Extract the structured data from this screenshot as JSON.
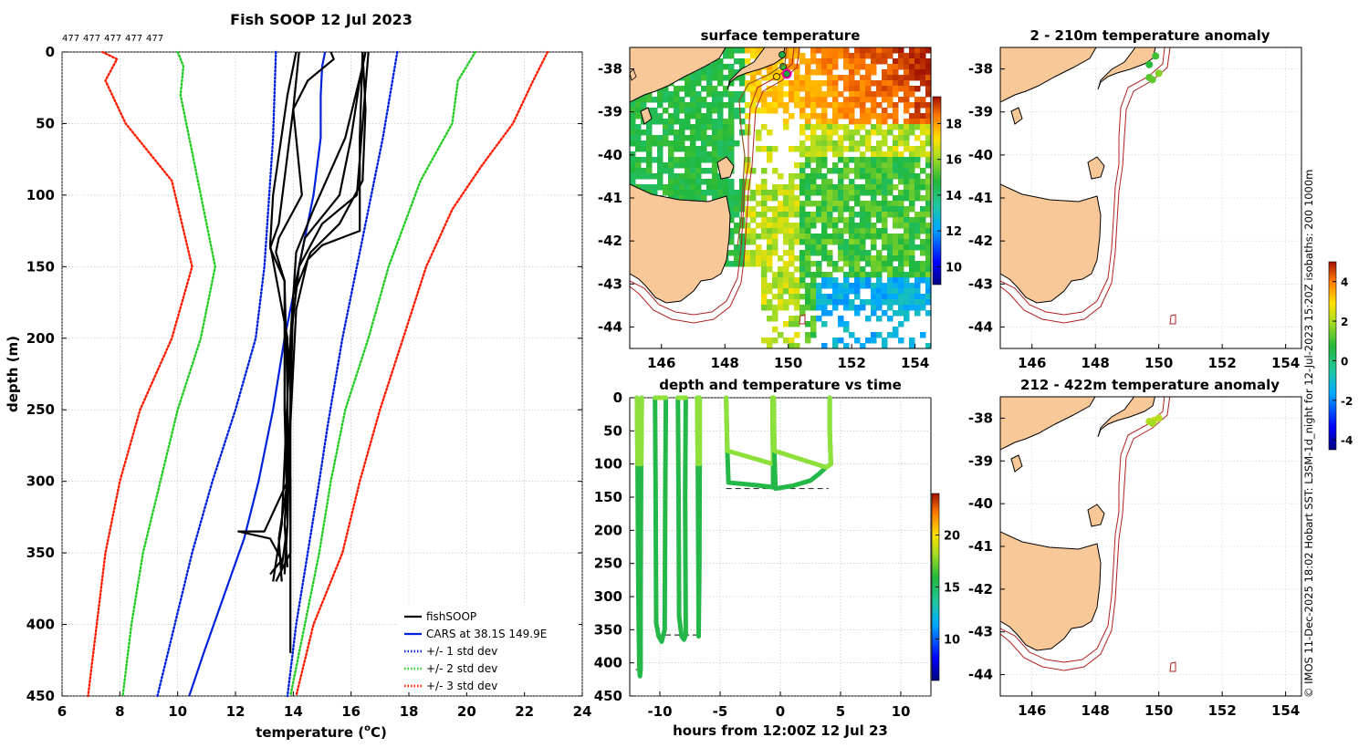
{
  "chart_data": [
    {
      "type": "line",
      "title": "Fish SOOP 12 Jul 2023",
      "count_labels": [
        "477",
        "477",
        "477",
        "477",
        "477"
      ],
      "xlabel": "temperature (",
      "xlabel_sup": "o",
      "xlabel_tail": "C)",
      "ylabel": "depth (m)",
      "xlim": [
        6,
        24
      ],
      "ylim": [
        0,
        450
      ],
      "y_inverted": true,
      "xticks": [
        "6",
        "8",
        "10",
        "12",
        "14",
        "16",
        "18",
        "20",
        "22",
        "24"
      ],
      "yticks": [
        "0",
        "50",
        "100",
        "150",
        "200",
        "250",
        "300",
        "350",
        "400",
        "450"
      ],
      "grid": true,
      "legend": {
        "placement": "bottom-right",
        "entries": [
          {
            "label": "fishSOOP",
            "color": "#000000",
            "style": "solid"
          },
          {
            "label": "CARS at 38.1S 149.9E",
            "color": "#0022dd",
            "style": "solid"
          },
          {
            "label": "+/- 1 std dev",
            "color": "#0022dd",
            "style": "dotted"
          },
          {
            "label": "+/- 2 std dev",
            "color": "#22cc22",
            "style": "dotted"
          },
          {
            "label": "+/- 3 std dev",
            "color": "#ff1a00",
            "style": "dotted"
          }
        ]
      },
      "cars_mean": {
        "name": "CARS at 38.1S 149.9E",
        "color": "#0022dd",
        "points": [
          [
            15.1,
            0
          ],
          [
            15.0,
            10
          ],
          [
            14.95,
            30
          ],
          [
            14.95,
            60
          ],
          [
            14.7,
            100
          ],
          [
            14.4,
            130
          ],
          [
            14.1,
            160
          ],
          [
            13.7,
            200
          ],
          [
            13.3,
            250
          ],
          [
            12.8,
            300
          ],
          [
            12.3,
            340
          ],
          [
            11.6,
            380
          ],
          [
            10.9,
            420
          ],
          [
            10.4,
            450
          ]
        ]
      },
      "std_bands": [
        {
          "name": "+/- 1 std dev",
          "color": "#0022dd",
          "left": [
            [
              13.4,
              0
            ],
            [
              13.3,
              60
            ],
            [
              13.0,
              150
            ],
            [
              12.7,
              200
            ],
            [
              12.0,
              250
            ],
            [
              11.2,
              300
            ],
            [
              10.5,
              350
            ],
            [
              9.9,
              400
            ],
            [
              9.3,
              450
            ]
          ],
          "right": [
            [
              17.6,
              0
            ],
            [
              17.1,
              60
            ],
            [
              16.5,
              120
            ],
            [
              15.7,
              200
            ],
            [
              15.2,
              260
            ],
            [
              14.9,
              300
            ],
            [
              14.5,
              350
            ],
            [
              14.1,
              400
            ],
            [
              13.8,
              450
            ]
          ]
        },
        {
          "name": "+/- 2 std dev",
          "color": "#22cc22",
          "left": [
            [
              10.0,
              0
            ],
            [
              10.2,
              10
            ],
            [
              10.1,
              30
            ],
            [
              10.6,
              80
            ],
            [
              11.3,
              150
            ],
            [
              10.8,
              200
            ],
            [
              10.0,
              250
            ],
            [
              9.4,
              300
            ],
            [
              8.8,
              350
            ],
            [
              8.4,
              400
            ],
            [
              8.1,
              450
            ]
          ],
          "right": [
            [
              20.3,
              0
            ],
            [
              19.7,
              20
            ],
            [
              19.5,
              50
            ],
            [
              18.4,
              90
            ],
            [
              17.3,
              150
            ],
            [
              16.6,
              200
            ],
            [
              15.8,
              250
            ],
            [
              15.3,
              300
            ],
            [
              14.9,
              350
            ],
            [
              14.4,
              400
            ],
            [
              13.9,
              450
            ]
          ]
        },
        {
          "name": "+/- 3 std dev",
          "color": "#ff1a00",
          "left": [
            [
              7.4,
              0
            ],
            [
              7.9,
              5
            ],
            [
              7.5,
              20
            ],
            [
              8.2,
              50
            ],
            [
              9.8,
              90
            ],
            [
              10.5,
              150
            ],
            [
              9.8,
              200
            ],
            [
              8.7,
              250
            ],
            [
              8.0,
              300
            ],
            [
              7.5,
              350
            ],
            [
              7.2,
              400
            ],
            [
              6.9,
              450
            ]
          ],
          "right": [
            [
              22.8,
              0
            ],
            [
              22.3,
              20
            ],
            [
              21.6,
              50
            ],
            [
              20.5,
              80
            ],
            [
              19.5,
              110
            ],
            [
              18.6,
              150
            ],
            [
              17.8,
              200
            ],
            [
              17.0,
              250
            ],
            [
              16.3,
              300
            ],
            [
              15.7,
              350
            ],
            [
              14.7,
              400
            ],
            [
              14.1,
              450
            ]
          ]
        }
      ],
      "fishsoop_profiles": [
        [
          [
            14.1,
            0
          ],
          [
            13.8,
            30
          ],
          [
            13.3,
            100
          ],
          [
            13.2,
            135
          ],
          [
            13.8,
            200
          ],
          [
            13.8,
            250
          ],
          [
            13.9,
            300
          ],
          [
            13.9,
            360
          ],
          [
            13.9,
            420
          ]
        ],
        [
          [
            14.2,
            0
          ],
          [
            14.0,
            40
          ],
          [
            13.5,
            120
          ],
          [
            13.2,
            137
          ],
          [
            13.7,
            160
          ],
          [
            13.7,
            250
          ],
          [
            13.8,
            330
          ],
          [
            13.6,
            360
          ]
        ],
        [
          [
            15.3,
            0
          ],
          [
            15.4,
            5
          ],
          [
            14.5,
            20
          ],
          [
            14.0,
            40
          ],
          [
            14.3,
            100
          ],
          [
            13.5,
            130
          ],
          [
            13.4,
            140
          ],
          [
            13.7,
            160
          ],
          [
            13.8,
            240
          ],
          [
            13.8,
            300
          ],
          [
            13.0,
            335
          ],
          [
            12.1,
            335
          ],
          [
            13.2,
            340
          ],
          [
            13.6,
            355
          ],
          [
            13.2,
            365
          ]
        ],
        [
          [
            16.4,
            0
          ],
          [
            16.4,
            10
          ],
          [
            15.8,
            60
          ],
          [
            14.7,
            110
          ],
          [
            14.1,
            140
          ],
          [
            13.9,
            200
          ],
          [
            13.9,
            280
          ],
          [
            13.9,
            350
          ],
          [
            13.4,
            370
          ]
        ],
        [
          [
            16.5,
            0
          ],
          [
            16.3,
            20
          ],
          [
            16.0,
            60
          ],
          [
            15.6,
            100
          ],
          [
            14.4,
            130
          ],
          [
            14.0,
            170
          ],
          [
            13.8,
            240
          ],
          [
            13.6,
            330
          ],
          [
            13.3,
            370
          ]
        ],
        [
          [
            16.6,
            0
          ],
          [
            16.4,
            50
          ],
          [
            16.2,
            100
          ],
          [
            15.0,
            120
          ],
          [
            14.2,
            150
          ],
          [
            13.8,
            220
          ],
          [
            13.8,
            300
          ],
          [
            13.5,
            340
          ],
          [
            13.6,
            370
          ]
        ],
        [
          [
            16.4,
            0
          ],
          [
            16.3,
            60
          ],
          [
            16.3,
            100
          ],
          [
            16.3,
            125
          ],
          [
            15.0,
            135
          ],
          [
            14.5,
            145
          ],
          [
            14.1,
            180
          ],
          [
            13.9,
            260
          ],
          [
            13.7,
            330
          ],
          [
            13.8,
            360
          ]
        ],
        [
          [
            16.4,
            0
          ],
          [
            16.5,
            40
          ],
          [
            16.4,
            90
          ],
          [
            15.6,
            120
          ],
          [
            14.6,
            140
          ],
          [
            14.0,
            170
          ],
          [
            13.9,
            250
          ],
          [
            13.8,
            330
          ],
          [
            13.7,
            365
          ]
        ]
      ]
    },
    {
      "type": "heatmap",
      "title": "surface temperature",
      "xticks": [
        "146",
        "148",
        "150",
        "152",
        "154"
      ],
      "yticks": [
        "-38",
        "-39",
        "-40",
        "-41",
        "-42",
        "-43",
        "-44"
      ],
      "lon_range": [
        145,
        154.5
      ],
      "lat_range": [
        -44.5,
        -37.5
      ],
      "colorbar": {
        "ticks": [
          "10",
          "12",
          "14",
          "16",
          "18"
        ],
        "range": [
          9,
          19.5
        ]
      }
    },
    {
      "type": "scatter",
      "title": "depth and temperature vs time",
      "xlabel": "hours from 12:00Z 12 Jul 23",
      "xticks": [
        "-10",
        "-5",
        "0",
        "5",
        "10"
      ],
      "yticks": [
        "0",
        "50",
        "100",
        "150",
        "200",
        "250",
        "300",
        "350",
        "400",
        "450"
      ],
      "xlim": [
        -12.5,
        12.5
      ],
      "ylim": [
        0,
        450
      ],
      "colorbar": {
        "ticks": [
          "10",
          "15",
          "20"
        ],
        "range": [
          6,
          24
        ]
      },
      "tracks": [
        [
          [
            -11.9,
            0
          ],
          [
            -11.85,
            100
          ],
          [
            -11.8,
            250
          ],
          [
            -11.75,
            350
          ],
          [
            -11.7,
            410
          ],
          [
            -11.65,
            420
          ],
          [
            -11.6,
            410
          ],
          [
            -11.6,
            300
          ],
          [
            -11.55,
            100
          ],
          [
            -11.5,
            0
          ]
        ],
        [
          [
            -10.4,
            0
          ],
          [
            -10.35,
            150
          ],
          [
            -10.3,
            340
          ],
          [
            -10.1,
            360
          ],
          [
            -9.85,
            368
          ],
          [
            -9.6,
            350
          ],
          [
            -9.55,
            150
          ],
          [
            -9.5,
            0
          ]
        ],
        [
          [
            -8.5,
            0
          ],
          [
            -8.45,
            150
          ],
          [
            -8.4,
            330
          ],
          [
            -8.2,
            360
          ],
          [
            -8.0,
            365
          ],
          [
            -7.85,
            358
          ],
          [
            -7.9,
            150
          ],
          [
            -7.85,
            0
          ]
        ],
        [
          [
            -6.9,
            0
          ],
          [
            -6.85,
            100
          ],
          [
            -6.8,
            250
          ],
          [
            -6.78,
            360
          ],
          [
            -6.72,
            250
          ],
          [
            -6.7,
            100
          ],
          [
            -6.7,
            0
          ]
        ],
        [
          [
            -4.5,
            0
          ],
          [
            -4.4,
            80
          ],
          [
            -4.3,
            128
          ],
          [
            -2.0,
            132
          ],
          [
            -0.6,
            135
          ],
          [
            -0.6,
            100
          ],
          [
            -0.65,
            0
          ]
        ],
        [
          [
            -0.55,
            0
          ],
          [
            -0.5,
            80
          ],
          [
            -0.4,
            137
          ],
          [
            1.0,
            133
          ],
          [
            2.5,
            125
          ],
          [
            3.2,
            115
          ],
          [
            3.8,
            105
          ],
          [
            4.2,
            100
          ],
          [
            4.1,
            50
          ],
          [
            4.1,
            0
          ]
        ]
      ],
      "bottom_marks": [
        {
          "x0": -12,
          "x1": -11.5,
          "depth": 410
        },
        {
          "x0": -10.3,
          "x1": -6.6,
          "depth": 358
        },
        {
          "x0": -4.5,
          "x1": 4,
          "depth": 137
        }
      ]
    },
    {
      "type": "scatter",
      "title": "2 - 210m temperature anomaly",
      "xticks": [
        "146",
        "148",
        "150",
        "152",
        "154"
      ],
      "yticks": [
        "-38",
        "-39",
        "-40",
        "-41",
        "-42",
        "-43",
        "-44"
      ],
      "points": [
        [
          149.9,
          -37.7,
          1.0
        ],
        [
          149.7,
          -37.9,
          0.8
        ],
        [
          150.0,
          -38.1,
          1.6
        ],
        [
          149.7,
          -38.2,
          1.2
        ],
        [
          149.8,
          -38.25,
          1.3
        ]
      ],
      "colorbar": {
        "ticks": [
          "4",
          "2",
          "0",
          "-2",
          "-4"
        ],
        "range": [
          -4.5,
          5
        ]
      }
    },
    {
      "type": "scatter",
      "title": "212 - 422m temperature anomaly",
      "xticks": [
        "146",
        "148",
        "150",
        "152",
        "154"
      ],
      "yticks": [
        "-38",
        "-39",
        "-40",
        "-41",
        "-42",
        "-43",
        "-44"
      ],
      "points": [
        [
          149.7,
          -38.08,
          2.0
        ],
        [
          149.85,
          -38.05,
          2.2
        ],
        [
          150.0,
          -38.0,
          2.1
        ],
        [
          149.8,
          -38.12,
          1.9
        ]
      ]
    }
  ],
  "side_note": "© IMOS 11-Dec-2025 18:02 Hobart SST: L3SM-1d_night for 12-Jul-2023 15:20Z isobaths: 200  1000m"
}
